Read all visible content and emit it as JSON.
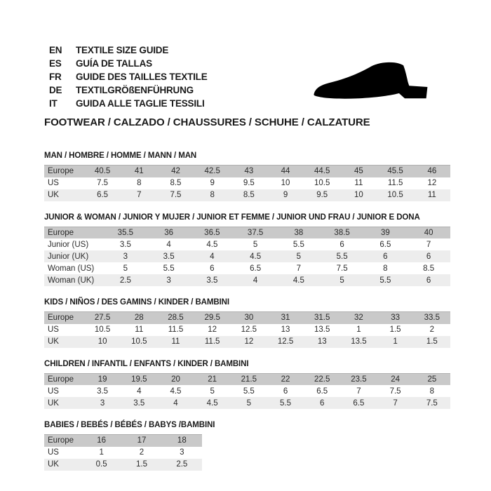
{
  "languages": [
    {
      "code": "EN",
      "text": "TEXTILE SIZE GUIDE"
    },
    {
      "code": "ES",
      "text": "GUÍA DE TALLAS"
    },
    {
      "code": "FR",
      "text": "GUIDE DES TAILLES TEXTILE"
    },
    {
      "code": "DE",
      "text": "TEXTILGRÖßENFÜHRUNG"
    },
    {
      "code": "IT",
      "text": "GUIDA ALLE TAGLIE TESSILI"
    }
  ],
  "footwear_title": "FOOTWEAR / CALZADO / CHAUSSURES / SCHUHE / CALZATURE",
  "shoe_icon": "black-dress-shoe-silhouette",
  "colors": {
    "header_row_bg": "#c9c9c9",
    "alt_row_bg": "#ededed",
    "header_row_border": "#b0b0b0",
    "text": "#1a1a1a",
    "shoe": "#000000"
  },
  "tables": [
    {
      "title": "MAN / HOMBRE / HOMME / MANN / MAN",
      "rows": [
        {
          "label": "Europe",
          "header": true,
          "values": [
            "40.5",
            "41",
            "42",
            "42.5",
            "43",
            "44",
            "44.5",
            "45",
            "45.5",
            "46"
          ]
        },
        {
          "label": "US",
          "values": [
            "7.5",
            "8",
            "8.5",
            "9",
            "9.5",
            "10",
            "10.5",
            "11",
            "11.5",
            "12"
          ]
        },
        {
          "label": "UK",
          "values": [
            "6.5",
            "7",
            "7.5",
            "8",
            "8.5",
            "9",
            "9.5",
            "10",
            "10.5",
            "11"
          ]
        }
      ]
    },
    {
      "title": "JUNIOR & WOMAN / JUNIOR Y MUJER / JUNIOR ET FEMME / JUNIOR UND FRAU / JUNIOR E DONA",
      "rows": [
        {
          "label": "Europe",
          "header": true,
          "values": [
            "35.5",
            "36",
            "36.5",
            "37.5",
            "38",
            "38.5",
            "39",
            "40"
          ]
        },
        {
          "label": "Junior (US)",
          "values": [
            "3.5",
            "4",
            "4.5",
            "5",
            "5.5",
            "6",
            "6.5",
            "7"
          ]
        },
        {
          "label": "Junior (UK)",
          "values": [
            "3",
            "3.5",
            "4",
            "4.5",
            "5",
            "5.5",
            "6",
            "6"
          ]
        },
        {
          "label": "Woman (US)",
          "values": [
            "5",
            "5.5",
            "6",
            "6.5",
            "7",
            "7.5",
            "8",
            "8.5"
          ]
        },
        {
          "label": "Woman (UK)",
          "values": [
            "2.5",
            "3",
            "3.5",
            "4",
            "4.5",
            "5",
            "5.5",
            "6"
          ]
        }
      ]
    },
    {
      "title": "KIDS / NIÑOS / DES GAMINS / KINDER / BAMBINI",
      "rows": [
        {
          "label": "Europe",
          "header": true,
          "values": [
            "27.5",
            "28",
            "28.5",
            "29.5",
            "30",
            "31",
            "31.5",
            "32",
            "33",
            "33.5"
          ]
        },
        {
          "label": "US",
          "values": [
            "10.5",
            "11",
            "11.5",
            "12",
            "12.5",
            "13",
            "13.5",
            "1",
            "1.5",
            "2"
          ]
        },
        {
          "label": "UK",
          "values": [
            "10",
            "10.5",
            "11",
            "11.5",
            "12",
            "12.5",
            "13",
            "13.5",
            "1",
            "1.5"
          ]
        }
      ]
    },
    {
      "title": "CHILDREN / INFANTIL / ENFANTS / KINDER / BAMBINI",
      "rows": [
        {
          "label": "Europe",
          "header": true,
          "values": [
            "19",
            "19.5",
            "20",
            "21",
            "21.5",
            "22",
            "22.5",
            "23.5",
            "24",
            "25"
          ]
        },
        {
          "label": "US",
          "values": [
            "3.5",
            "4",
            "4.5",
            "5",
            "5.5",
            "6",
            "6.5",
            "7",
            "7.5",
            "8"
          ]
        },
        {
          "label": "UK",
          "values": [
            "3",
            "3.5",
            "4",
            "4.5",
            "5",
            "5.5",
            "6",
            "6.5",
            "7",
            "7.5"
          ]
        }
      ]
    },
    {
      "title": "BABIES / BEBÉS / BÉBÉS / BABYS /BAMBINI",
      "rows": [
        {
          "label": "Europe",
          "header": true,
          "values": [
            "16",
            "17",
            "18"
          ]
        },
        {
          "label": "US",
          "values": [
            "1",
            "2",
            "3"
          ]
        },
        {
          "label": "UK",
          "values": [
            "0.5",
            "1.5",
            "2.5"
          ]
        }
      ]
    }
  ]
}
